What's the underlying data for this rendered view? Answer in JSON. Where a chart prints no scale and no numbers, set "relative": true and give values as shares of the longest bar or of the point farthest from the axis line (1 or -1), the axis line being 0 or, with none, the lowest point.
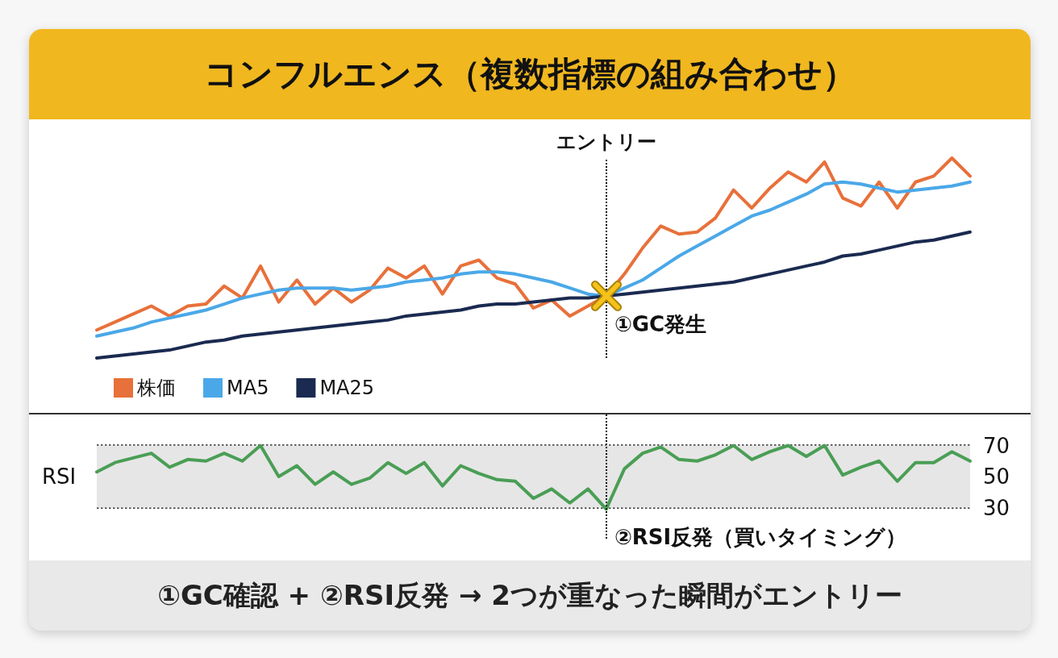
{
  "chart_data": [
    {
      "type": "line",
      "title": "コンフルエンス（複数指標の組み合わせ）",
      "relative": true,
      "categories": [
        null,
        null,
        null,
        null,
        null,
        null,
        null,
        null,
        null,
        null,
        null,
        null,
        null,
        null,
        null,
        null,
        null,
        null,
        null,
        null,
        null,
        null,
        null,
        null,
        null,
        null,
        null,
        null,
        null,
        null,
        null,
        null,
        null,
        null,
        null,
        null,
        null,
        null,
        null,
        null,
        null,
        null,
        null,
        null,
        null,
        null,
        null,
        null,
        null
      ],
      "tick_labels": false,
      "legend": "bottom left",
      "marker": "none",
      "line_style": "solid",
      "ref_lines": [
        {
          "axis": "x",
          "label": "エントリー"
        }
      ],
      "annotations": [
        "①GC発生"
      ],
      "series": [
        {
          "name": "株価",
          "color": "#e8703a",
          "values": [
            0.14,
            0.18,
            0.22,
            0.26,
            0.21,
            0.26,
            0.27,
            0.36,
            0.3,
            0.46,
            0.28,
            0.39,
            0.27,
            0.35,
            0.28,
            0.34,
            0.45,
            0.4,
            0.46,
            0.32,
            0.46,
            0.49,
            0.4,
            0.37,
            0.25,
            0.29,
            0.21,
            0.26,
            0.31,
            0.42,
            0.55,
            0.66,
            0.62,
            0.63,
            0.7,
            0.84,
            0.75,
            0.85,
            0.93,
            0.88,
            0.98,
            0.8,
            0.76,
            0.88,
            0.75,
            0.88,
            0.91,
            1.0,
            0.91
          ]
        },
        {
          "name": "MA5",
          "color": "#4aa8e8",
          "values": [
            0.11,
            0.13,
            0.15,
            0.18,
            0.2,
            0.22,
            0.24,
            0.27,
            0.3,
            0.32,
            0.34,
            0.35,
            0.35,
            0.35,
            0.34,
            0.35,
            0.36,
            0.38,
            0.39,
            0.4,
            0.42,
            0.43,
            0.43,
            0.42,
            0.4,
            0.38,
            0.35,
            0.32,
            0.31,
            0.35,
            0.39,
            0.45,
            0.51,
            0.56,
            0.61,
            0.66,
            0.71,
            0.74,
            0.78,
            0.82,
            0.87,
            0.88,
            0.87,
            0.85,
            0.83,
            0.84,
            0.85,
            0.86,
            0.88
          ]
        },
        {
          "name": "MA25",
          "color": "#1a2a50",
          "values": [
            0.0,
            0.01,
            0.02,
            0.03,
            0.04,
            0.06,
            0.08,
            0.09,
            0.11,
            0.12,
            0.13,
            0.14,
            0.15,
            0.16,
            0.17,
            0.18,
            0.19,
            0.21,
            0.22,
            0.23,
            0.24,
            0.26,
            0.27,
            0.27,
            0.28,
            0.29,
            0.3,
            0.3,
            0.31,
            0.32,
            0.33,
            0.34,
            0.35,
            0.36,
            0.37,
            0.38,
            0.4,
            0.42,
            0.44,
            0.46,
            0.48,
            0.51,
            0.52,
            0.54,
            0.56,
            0.58,
            0.59,
            0.61,
            0.63
          ]
        }
      ]
    },
    {
      "type": "line",
      "ylabel": "RSI",
      "categories": [
        null,
        null,
        null,
        null,
        null,
        null,
        null,
        null,
        null,
        null,
        null,
        null,
        null,
        null,
        null,
        null,
        null,
        null,
        null,
        null,
        null,
        null,
        null,
        null,
        null,
        null,
        null,
        null,
        null,
        null,
        null,
        null,
        null,
        null,
        null,
        null,
        null,
        null,
        null,
        null,
        null,
        null,
        null,
        null,
        null,
        null,
        null,
        null,
        null
      ],
      "ylim": [
        10,
        90
      ],
      "yticks": [
        30,
        50,
        70
      ],
      "tick_labels": "y",
      "grid": "y",
      "marker": "none",
      "line_style": "solid",
      "bands": [
        {
          "axis": "y",
          "from": 30,
          "to": 70,
          "color": "#e6e6e6"
        }
      ],
      "annotations": [
        "②RSI反発（買いタイミング）",
        "①GC確認 + ②RSI反発 → 2つが重なった瞬間がエントリー"
      ],
      "series": [
        {
          "color": "#4a9e55",
          "values": [
            53,
            59,
            62,
            65,
            56,
            61,
            60,
            65,
            60,
            70,
            50,
            57,
            45,
            53,
            45,
            49,
            59,
            52,
            59,
            44,
            57,
            52,
            48,
            47,
            36,
            42,
            33,
            42,
            29,
            55,
            65,
            69,
            61,
            60,
            64,
            70,
            61,
            66,
            70,
            63,
            70,
            51,
            56,
            60,
            47,
            59,
            59,
            66,
            60
          ]
        }
      ]
    }
  ]
}
